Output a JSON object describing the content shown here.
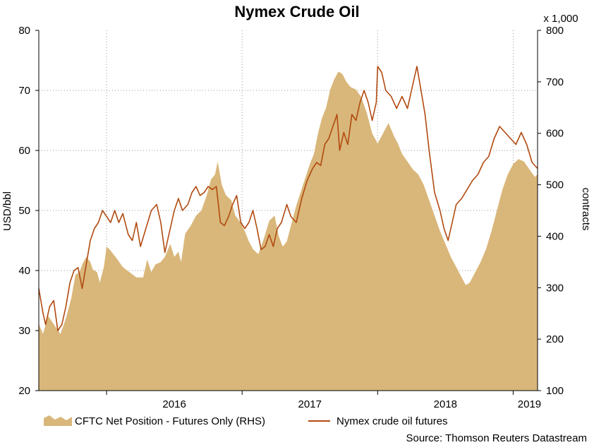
{
  "chart_data": {
    "type": "line",
    "title": "Nymex Crude Oil",
    "left_axis": {
      "label": "USD/bbl",
      "range": [
        20,
        80
      ],
      "ticks": [
        "20",
        "30",
        "40",
        "50",
        "60",
        "70",
        "80"
      ]
    },
    "right_axis": {
      "label": "contracts",
      "multiplier_label": "x 1,000",
      "range": [
        100,
        800
      ],
      "ticks": [
        "100",
        "200",
        "300",
        "400",
        "500",
        "600",
        "700",
        "800"
      ]
    },
    "x_axis": {
      "range": [
        2015.5,
        2019.18
      ],
      "ticks": [
        {
          "label": "2016",
          "pos": 2016.0
        },
        {
          "label": "2017",
          "pos": 2017.0
        },
        {
          "label": "2018",
          "pos": 2018.0
        },
        {
          "label": "2019",
          "pos": 2019.0
        }
      ],
      "label_positions": [
        {
          "label": "2016",
          "pos": 2016.5
        },
        {
          "label": "2017",
          "pos": 2017.5
        },
        {
          "label": "2018",
          "pos": 2018.5
        },
        {
          "label": "2019",
          "pos": 2019.12
        }
      ]
    },
    "grid": true,
    "legend_position": "bottom",
    "series": [
      {
        "name": "CFTC Net Position - Futures Only (RHS)",
        "type": "area",
        "axis": "right",
        "color": "#d9b77a",
        "points": [
          [
            2015.5,
            230
          ],
          [
            2015.53,
            210
          ],
          [
            2015.57,
            245
          ],
          [
            2015.62,
            225
          ],
          [
            2015.66,
            210
          ],
          [
            2015.7,
            240
          ],
          [
            2015.74,
            280
          ],
          [
            2015.77,
            325
          ],
          [
            2015.8,
            330
          ],
          [
            2015.82,
            345
          ],
          [
            2015.85,
            360
          ],
          [
            2015.88,
            350
          ],
          [
            2015.9,
            335
          ],
          [
            2015.93,
            330
          ],
          [
            2015.95,
            310
          ],
          [
            2015.98,
            340
          ],
          [
            2016.0,
            380
          ],
          [
            2016.02,
            375
          ],
          [
            2016.05,
            365
          ],
          [
            2016.08,
            355
          ],
          [
            2016.12,
            340
          ],
          [
            2016.17,
            330
          ],
          [
            2016.22,
            320
          ],
          [
            2016.27,
            320
          ],
          [
            2016.3,
            355
          ],
          [
            2016.33,
            330
          ],
          [
            2016.36,
            345
          ],
          [
            2016.4,
            350
          ],
          [
            2016.43,
            360
          ],
          [
            2016.47,
            385
          ],
          [
            2016.5,
            360
          ],
          [
            2016.53,
            370
          ],
          [
            2016.55,
            350
          ],
          [
            2016.58,
            405
          ],
          [
            2016.62,
            420
          ],
          [
            2016.66,
            440
          ],
          [
            2016.7,
            450
          ],
          [
            2016.74,
            480
          ],
          [
            2016.77,
            510
          ],
          [
            2016.8,
            520
          ],
          [
            2016.82,
            545
          ],
          [
            2016.85,
            500
          ],
          [
            2016.88,
            480
          ],
          [
            2016.92,
            470
          ],
          [
            2016.95,
            440
          ],
          [
            2016.98,
            430
          ],
          [
            2017.0,
            420
          ],
          [
            2017.02,
            410
          ],
          [
            2017.05,
            390
          ],
          [
            2017.08,
            375
          ],
          [
            2017.12,
            365
          ],
          [
            2017.16,
            395
          ],
          [
            2017.2,
            430
          ],
          [
            2017.24,
            440
          ],
          [
            2017.27,
            400
          ],
          [
            2017.3,
            380
          ],
          [
            2017.33,
            390
          ],
          [
            2017.36,
            420
          ],
          [
            2017.4,
            460
          ],
          [
            2017.45,
            500
          ],
          [
            2017.5,
            540
          ],
          [
            2017.53,
            560
          ],
          [
            2017.56,
            600
          ],
          [
            2017.59,
            630
          ],
          [
            2017.62,
            650
          ],
          [
            2017.65,
            685
          ],
          [
            2017.68,
            705
          ],
          [
            2017.71,
            720
          ],
          [
            2017.74,
            715
          ],
          [
            2017.77,
            700
          ],
          [
            2017.8,
            690
          ],
          [
            2017.84,
            685
          ],
          [
            2017.88,
            670
          ],
          [
            2017.92,
            640
          ],
          [
            2017.96,
            600
          ],
          [
            2018.0,
            580
          ],
          [
            2018.04,
            600
          ],
          [
            2018.08,
            620
          ],
          [
            2018.12,
            595
          ],
          [
            2018.15,
            580
          ],
          [
            2018.18,
            560
          ],
          [
            2018.22,
            545
          ],
          [
            2018.26,
            530
          ],
          [
            2018.3,
            520
          ],
          [
            2018.34,
            500
          ],
          [
            2018.38,
            470
          ],
          [
            2018.42,
            440
          ],
          [
            2018.46,
            410
          ],
          [
            2018.5,
            385
          ],
          [
            2018.54,
            360
          ],
          [
            2018.58,
            340
          ],
          [
            2018.62,
            320
          ],
          [
            2018.65,
            305
          ],
          [
            2018.68,
            310
          ],
          [
            2018.72,
            330
          ],
          [
            2018.76,
            350
          ],
          [
            2018.8,
            375
          ],
          [
            2018.84,
            410
          ],
          [
            2018.88,
            450
          ],
          [
            2018.92,
            490
          ],
          [
            2018.96,
            520
          ],
          [
            2019.0,
            540
          ],
          [
            2019.04,
            550
          ],
          [
            2019.08,
            545
          ],
          [
            2019.12,
            530
          ],
          [
            2019.16,
            515
          ],
          [
            2019.18,
            520
          ]
        ]
      },
      {
        "name": "Nymex crude oil futures",
        "type": "line",
        "axis": "left",
        "color": "#b14a10",
        "points": [
          [
            2015.5,
            37
          ],
          [
            2015.53,
            33
          ],
          [
            2015.55,
            31
          ],
          [
            2015.58,
            34
          ],
          [
            2015.61,
            35
          ],
          [
            2015.64,
            30
          ],
          [
            2015.67,
            31
          ],
          [
            2015.7,
            34
          ],
          [
            2015.73,
            38
          ],
          [
            2015.76,
            40
          ],
          [
            2015.79,
            40.5
          ],
          [
            2015.82,
            37
          ],
          [
            2015.85,
            41
          ],
          [
            2015.88,
            45
          ],
          [
            2015.91,
            47
          ],
          [
            2015.94,
            48
          ],
          [
            2015.97,
            50
          ],
          [
            2016.0,
            49
          ],
          [
            2016.03,
            48
          ],
          [
            2016.06,
            50
          ],
          [
            2016.09,
            48
          ],
          [
            2016.12,
            49.5
          ],
          [
            2016.16,
            46
          ],
          [
            2016.19,
            45
          ],
          [
            2016.22,
            48
          ],
          [
            2016.25,
            44
          ],
          [
            2016.29,
            47
          ],
          [
            2016.33,
            50
          ],
          [
            2016.37,
            51
          ],
          [
            2016.4,
            48
          ],
          [
            2016.43,
            43
          ],
          [
            2016.46,
            46
          ],
          [
            2016.5,
            50
          ],
          [
            2016.53,
            52
          ],
          [
            2016.56,
            50
          ],
          [
            2016.6,
            51
          ],
          [
            2016.63,
            53
          ],
          [
            2016.66,
            54
          ],
          [
            2016.69,
            52.5
          ],
          [
            2016.72,
            53
          ],
          [
            2016.75,
            54
          ],
          [
            2016.78,
            53.5
          ],
          [
            2016.81,
            54
          ],
          [
            2016.84,
            48
          ],
          [
            2016.87,
            47.5
          ],
          [
            2016.9,
            49
          ],
          [
            2016.93,
            51
          ],
          [
            2016.96,
            52.5
          ],
          [
            2016.99,
            48
          ],
          [
            2017.02,
            47
          ],
          [
            2017.05,
            48
          ],
          [
            2017.08,
            50
          ],
          [
            2017.11,
            47
          ],
          [
            2017.14,
            43.5
          ],
          [
            2017.17,
            44
          ],
          [
            2017.2,
            46
          ],
          [
            2017.23,
            44
          ],
          [
            2017.26,
            47
          ],
          [
            2017.29,
            48
          ],
          [
            2017.33,
            51
          ],
          [
            2017.36,
            49
          ],
          [
            2017.4,
            48
          ],
          [
            2017.44,
            52
          ],
          [
            2017.48,
            55
          ],
          [
            2017.52,
            57
          ],
          [
            2017.55,
            58
          ],
          [
            2017.58,
            57.5
          ],
          [
            2017.61,
            61
          ],
          [
            2017.64,
            62
          ],
          [
            2017.67,
            64
          ],
          [
            2017.7,
            66
          ],
          [
            2017.72,
            60
          ],
          [
            2017.75,
            63
          ],
          [
            2017.78,
            61
          ],
          [
            2017.81,
            66
          ],
          [
            2017.84,
            65
          ],
          [
            2017.87,
            68
          ],
          [
            2017.9,
            70
          ],
          [
            2017.93,
            68
          ],
          [
            2017.96,
            65
          ],
          [
            2017.99,
            68
          ],
          [
            2018.0,
            74
          ],
          [
            2018.03,
            73
          ],
          [
            2018.06,
            70
          ],
          [
            2018.1,
            69
          ],
          [
            2018.14,
            67
          ],
          [
            2018.18,
            69
          ],
          [
            2018.22,
            67
          ],
          [
            2018.26,
            71
          ],
          [
            2018.29,
            74
          ],
          [
            2018.32,
            70
          ],
          [
            2018.35,
            66
          ],
          [
            2018.38,
            60
          ],
          [
            2018.42,
            53
          ],
          [
            2018.46,
            50
          ],
          [
            2018.49,
            47
          ],
          [
            2018.52,
            45
          ],
          [
            2018.55,
            48
          ],
          [
            2018.58,
            51
          ],
          [
            2018.62,
            52
          ],
          [
            2018.66,
            53.5
          ],
          [
            2018.7,
            55
          ],
          [
            2018.74,
            56
          ],
          [
            2018.78,
            58
          ],
          [
            2018.82,
            59
          ],
          [
            2018.86,
            62
          ],
          [
            2018.9,
            64
          ],
          [
            2018.94,
            63
          ],
          [
            2018.98,
            62
          ],
          [
            2019.02,
            61
          ],
          [
            2019.06,
            63
          ],
          [
            2019.1,
            61
          ],
          [
            2019.14,
            58
          ],
          [
            2019.18,
            57
          ]
        ]
      }
    ],
    "source": "Source: Thomson Reuters Datastream"
  }
}
